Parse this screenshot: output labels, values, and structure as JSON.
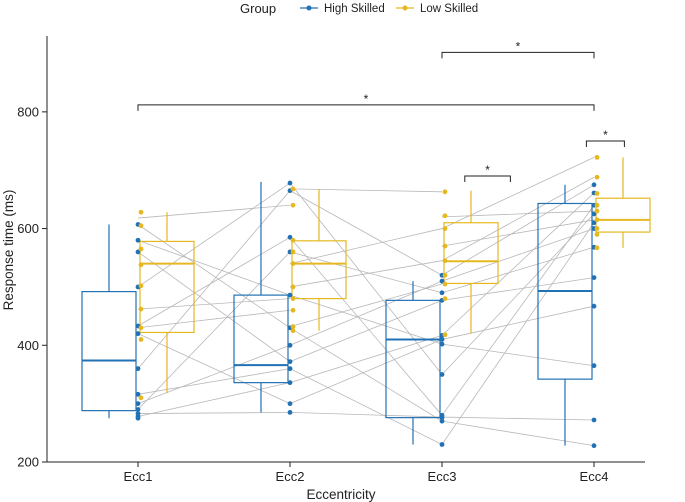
{
  "chart_data": {
    "type": "box",
    "xlabel": "Eccentricity",
    "ylabel": "Response time (ms)",
    "categories": [
      "Ecc1",
      "Ecc2",
      "Ecc3",
      "Ecc4"
    ],
    "ylim": [
      200,
      930
    ],
    "yticks": [
      200,
      400,
      600,
      800
    ],
    "grid": false,
    "legend": {
      "title": "Group",
      "position": "top",
      "entries": [
        {
          "name": "High Skilled",
          "color": "#2171b5"
        },
        {
          "name": "Low Skilled",
          "color": "#e6b820"
        }
      ]
    },
    "series": [
      {
        "name": "High Skilled",
        "color": "#2171b5",
        "boxes": [
          {
            "category": "Ecc1",
            "whisker_low": 275,
            "q1": 288,
            "median": 374,
            "q3": 492,
            "whisker_high": 607
          },
          {
            "category": "Ecc2",
            "whisker_low": 285,
            "q1": 336,
            "median": 366,
            "q3": 486,
            "whisker_high": 680
          },
          {
            "category": "Ecc3",
            "whisker_low": 230,
            "q1": 276,
            "median": 410,
            "q3": 477,
            "whisker_high": 510
          },
          {
            "category": "Ecc4",
            "whisker_low": 228,
            "q1": 342,
            "median": 493,
            "q3": 643,
            "whisker_high": 675
          }
        ],
        "points": [
          [
            275,
            278,
            283,
            290,
            300,
            316,
            360,
            420,
            433,
            500,
            560,
            580,
            607
          ],
          [
            285,
            300,
            336,
            360,
            372,
            400,
            430,
            486,
            560,
            585,
            665,
            678
          ],
          [
            230,
            270,
            276,
            280,
            350,
            402,
            410,
            417,
            477,
            490,
            510,
            520
          ],
          [
            228,
            272,
            365,
            467,
            516,
            568,
            600,
            610,
            625,
            640,
            661,
            675
          ]
        ]
      },
      {
        "name": "Low Skilled",
        "color": "#e6b820",
        "boxes": [
          {
            "category": "Ecc1",
            "whisker_low": 318,
            "q1": 422,
            "median": 540,
            "q3": 578,
            "whisker_high": 628
          },
          {
            "category": "Ecc2",
            "whisker_low": 425,
            "q1": 480,
            "median": 540,
            "q3": 579,
            "whisker_high": 668
          },
          {
            "category": "Ecc3",
            "whisker_low": 420,
            "q1": 506,
            "median": 544,
            "q3": 610,
            "whisker_high": 665
          },
          {
            "category": "Ecc4",
            "whisker_low": 567,
            "q1": 594,
            "median": 615,
            "q3": 652,
            "whisker_high": 722
          }
        ],
        "points": [
          [
            310,
            410,
            430,
            462,
            502,
            538,
            565,
            605,
            628
          ],
          [
            425,
            432,
            460,
            480,
            500,
            540,
            560,
            580,
            640,
            668
          ],
          [
            418,
            480,
            505,
            520,
            545,
            570,
            600,
            622,
            663
          ],
          [
            567,
            590,
            600,
            615,
            630,
            640,
            660,
            688,
            722
          ]
        ]
      }
    ],
    "paired_lines": [
      [
        [
          1,
          290
        ],
        [
          2,
          560
        ]
      ],
      [
        [
          1,
          316
        ],
        [
          2,
          360
        ]
      ],
      [
        [
          1,
          420
        ],
        [
          2,
          300
        ]
      ],
      [
        [
          1,
          433
        ],
        [
          2,
          585
        ]
      ],
      [
        [
          1,
          500
        ],
        [
          2,
          678
        ]
      ],
      [
        [
          1,
          560
        ],
        [
          2,
          372
        ]
      ],
      [
        [
          1,
          580
        ],
        [
          2,
          486
        ]
      ],
      [
        [
          1,
          607
        ],
        [
          2,
          430
        ]
      ],
      [
        [
          1,
          283
        ],
        [
          2,
          285
        ]
      ],
      [
        [
          1,
          300
        ],
        [
          2,
          400
        ]
      ],
      [
        [
          1,
          360
        ],
        [
          2,
          665
        ]
      ],
      [
        [
          1,
          278
        ],
        [
          2,
          336
        ]
      ],
      [
        [
          2,
          285
        ],
        [
          3,
          277
        ]
      ],
      [
        [
          2,
          336
        ],
        [
          3,
          417
        ]
      ],
      [
        [
          2,
          360
        ],
        [
          3,
          230
        ]
      ],
      [
        [
          2,
          400
        ],
        [
          3,
          510
        ]
      ],
      [
        [
          2,
          430
        ],
        [
          3,
          270
        ]
      ],
      [
        [
          2,
          486
        ],
        [
          3,
          402
        ]
      ],
      [
        [
          2,
          560
        ],
        [
          3,
          490
        ]
      ],
      [
        [
          2,
          585
        ],
        [
          3,
          280
        ]
      ],
      [
        [
          2,
          665
        ],
        [
          3,
          520
        ]
      ],
      [
        [
          2,
          678
        ],
        [
          3,
          350
        ]
      ],
      [
        [
          2,
          300
        ],
        [
          3,
          410
        ]
      ],
      [
        [
          2,
          372
        ],
        [
          3,
          477
        ]
      ],
      [
        [
          3,
          230
        ],
        [
          4,
          610
        ]
      ],
      [
        [
          3,
          270
        ],
        [
          4,
          228
        ]
      ],
      [
        [
          3,
          277
        ],
        [
          4,
          272
        ]
      ],
      [
        [
          3,
          280
        ],
        [
          4,
          640
        ]
      ],
      [
        [
          3,
          350
        ],
        [
          4,
          625
        ]
      ],
      [
        [
          3,
          402
        ],
        [
          4,
          365
        ]
      ],
      [
        [
          3,
          410
        ],
        [
          4,
          467
        ]
      ],
      [
        [
          3,
          417
        ],
        [
          4,
          661
        ]
      ],
      [
        [
          3,
          477
        ],
        [
          4,
          516
        ]
      ],
      [
        [
          3,
          490
        ],
        [
          4,
          568
        ]
      ],
      [
        [
          3,
          510
        ],
        [
          4,
          600
        ]
      ],
      [
        [
          3,
          520
        ],
        [
          4,
          675
        ]
      ],
      [
        [
          1,
          618
        ],
        [
          2,
          640
        ]
      ],
      [
        [
          2,
          500
        ],
        [
          3,
          545
        ]
      ],
      [
        [
          3,
          620
        ],
        [
          4,
          630
        ]
      ],
      [
        [
          1,
          462
        ],
        [
          2,
          480
        ]
      ],
      [
        [
          2,
          668
        ],
        [
          3,
          663
        ]
      ],
      [
        [
          3,
          545
        ],
        [
          4,
          688
        ]
      ],
      [
        [
          2,
          540
        ],
        [
          3,
          600
        ]
      ],
      [
        [
          3,
          600
        ],
        [
          4,
          722
        ]
      ],
      [
        [
          1,
          430
        ],
        [
          2,
          460
        ]
      ],
      [
        [
          2,
          432
        ],
        [
          3,
          505
        ]
      ],
      [
        [
          3,
          570
        ],
        [
          4,
          615
        ]
      ]
    ],
    "significance": [
      {
        "label": "*",
        "from": 1,
        "to": 4,
        "y": 812
      },
      {
        "label": "*",
        "from": 3,
        "to": 4,
        "y": 902
      },
      {
        "label": "*",
        "from": 3.15,
        "to": 3.45,
        "y": 690
      },
      {
        "label": "*",
        "from": 3.95,
        "to": 4.2,
        "y": 750
      }
    ]
  }
}
